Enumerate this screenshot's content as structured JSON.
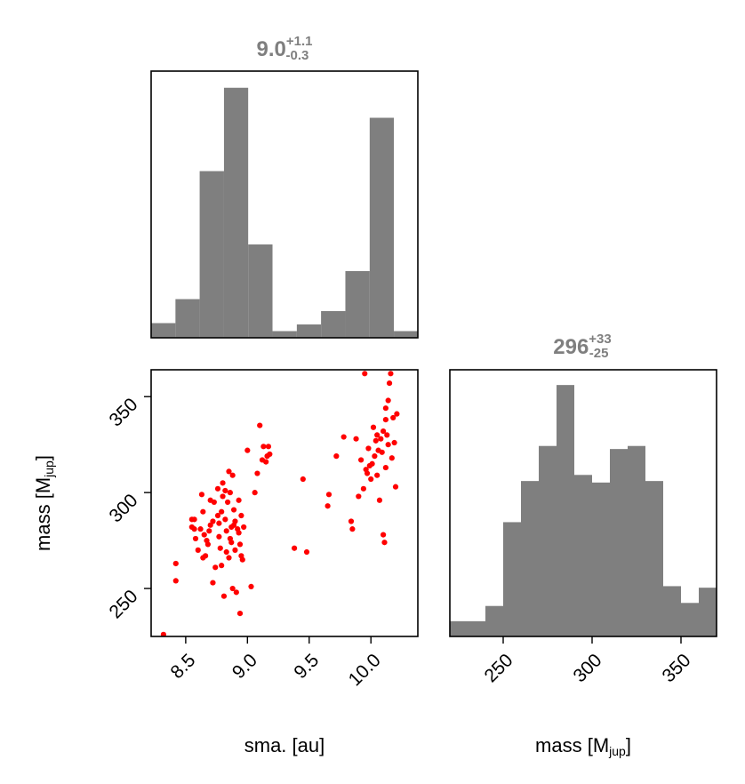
{
  "colors": {
    "hist": "#7f7f7f",
    "scatter": "#ff0000",
    "title": "#7f7f7f"
  },
  "chart_data": [
    {
      "type": "bar",
      "panel": "top-left",
      "title": {
        "value": "9.0",
        "plus": "+1.1",
        "minus": "-0.3"
      },
      "x_range": [
        8.22,
        10.38
      ],
      "bin_edges": [
        8.22,
        8.417,
        8.613,
        8.81,
        9.006,
        9.203,
        9.4,
        9.596,
        9.793,
        9.99,
        10.186,
        10.38
      ],
      "counts": [
        2.2,
        5.8,
        25,
        37.5,
        14,
        1,
        2,
        4,
        10,
        33,
        1
      ],
      "ylim": [
        0,
        40
      ]
    },
    {
      "type": "scatter",
      "panel": "bottom-left",
      "xlabel": "sma. [au]",
      "ylabel": {
        "text": "mass [M",
        "sub": "jup",
        "close": "]"
      },
      "xlim": [
        8.22,
        10.38
      ],
      "ylim": [
        225,
        364
      ],
      "xticks": [
        8.5,
        9.0,
        9.5,
        10.0
      ],
      "xtick_labels": [
        "8.5",
        "9.0",
        "9.5",
        "10.0"
      ],
      "yticks": [
        250,
        300,
        350
      ],
      "ytick_labels": [
        "250",
        "300",
        "350"
      ],
      "points": [
        [
          8.32,
          226
        ],
        [
          8.42,
          263
        ],
        [
          8.42,
          254
        ],
        [
          8.55,
          286
        ],
        [
          8.57,
          286
        ],
        [
          8.55,
          282
        ],
        [
          8.57,
          281
        ],
        [
          8.58,
          276
        ],
        [
          8.6,
          270
        ],
        [
          8.62,
          281
        ],
        [
          8.63,
          299
        ],
        [
          8.64,
          290
        ],
        [
          8.64,
          266
        ],
        [
          8.65,
          278
        ],
        [
          8.66,
          267
        ],
        [
          8.67,
          275
        ],
        [
          8.68,
          273
        ],
        [
          8.69,
          280
        ],
        [
          8.7,
          283
        ],
        [
          8.7,
          296
        ],
        [
          8.72,
          253
        ],
        [
          8.72,
          285
        ],
        [
          8.73,
          295
        ],
        [
          8.74,
          261
        ],
        [
          8.76,
          302
        ],
        [
          8.76,
          288
        ],
        [
          8.77,
          284
        ],
        [
          8.77,
          277
        ],
        [
          8.78,
          271
        ],
        [
          8.79,
          262
        ],
        [
          8.79,
          290
        ],
        [
          8.8,
          298
        ],
        [
          8.8,
          305
        ],
        [
          8.81,
          246
        ],
        [
          8.82,
          301
        ],
        [
          8.82,
          286
        ],
        [
          8.83,
          280
        ],
        [
          8.83,
          269
        ],
        [
          8.84,
          295
        ],
        [
          8.85,
          266
        ],
        [
          8.85,
          311
        ],
        [
          8.86,
          300
        ],
        [
          8.86,
          276
        ],
        [
          8.87,
          282
        ],
        [
          8.87,
          274
        ],
        [
          8.88,
          250
        ],
        [
          8.88,
          309
        ],
        [
          8.89,
          291
        ],
        [
          8.89,
          283
        ],
        [
          8.9,
          285
        ],
        [
          8.9,
          270
        ],
        [
          8.91,
          248
        ],
        [
          8.92,
          281
        ],
        [
          8.93,
          279
        ],
        [
          8.93,
          296
        ],
        [
          8.94,
          273
        ],
        [
          8.94,
          237
        ],
        [
          8.95,
          267
        ],
        [
          8.95,
          288
        ],
        [
          8.96,
          265
        ],
        [
          8.97,
          282
        ],
        [
          9.0,
          322
        ],
        [
          9.03,
          251
        ],
        [
          9.06,
          300
        ],
        [
          9.08,
          310
        ],
        [
          9.1,
          335
        ],
        [
          9.12,
          317
        ],
        [
          9.13,
          324
        ],
        [
          9.15,
          316
        ],
        [
          9.16,
          319
        ],
        [
          9.17,
          324
        ],
        [
          9.18,
          320
        ],
        [
          9.38,
          271
        ],
        [
          9.45,
          307
        ],
        [
          9.48,
          269
        ],
        [
          9.65,
          293
        ],
        [
          9.66,
          299
        ],
        [
          9.72,
          319
        ],
        [
          9.78,
          329
        ],
        [
          9.84,
          285
        ],
        [
          9.85,
          281
        ],
        [
          9.88,
          328
        ],
        [
          9.9,
          298
        ],
        [
          9.92,
          317
        ],
        [
          9.94,
          302
        ],
        [
          9.95,
          362
        ],
        [
          9.96,
          312
        ],
        [
          9.97,
          310
        ],
        [
          9.98,
          323
        ],
        [
          9.99,
          314
        ],
        [
          10.0,
          307
        ],
        [
          10.01,
          315
        ],
        [
          10.02,
          334
        ],
        [
          10.03,
          319
        ],
        [
          10.04,
          327
        ],
        [
          10.05,
          330
        ],
        [
          10.05,
          309
        ],
        [
          10.06,
          322
        ],
        [
          10.07,
          296
        ],
        [
          10.08,
          328
        ],
        [
          10.09,
          321
        ],
        [
          10.1,
          332
        ],
        [
          10.1,
          278
        ],
        [
          10.11,
          274
        ],
        [
          10.12,
          313
        ],
        [
          10.12,
          338
        ],
        [
          10.13,
          330
        ],
        [
          10.14,
          325
        ],
        [
          10.14,
          348
        ],
        [
          10.15,
          357
        ],
        [
          10.16,
          362
        ],
        [
          10.17,
          318
        ],
        [
          10.18,
          339
        ],
        [
          10.19,
          326
        ],
        [
          10.2,
          303
        ],
        [
          10.21,
          341
        ],
        [
          10.12,
          344
        ]
      ]
    },
    {
      "type": "bar",
      "panel": "bottom-right",
      "title": {
        "value": "296",
        "plus": "+33",
        "minus": "-25"
      },
      "xlabel": {
        "text": "mass [M",
        "sub": "jup",
        "close": "]"
      },
      "x_range": [
        220,
        370
      ],
      "bin_edges": [
        220,
        240,
        250,
        260,
        270,
        280,
        290,
        300,
        310,
        320,
        330,
        340,
        350,
        360,
        370
      ],
      "counts": [
        1,
        2,
        7.5,
        10.2,
        12.5,
        16.5,
        10.6,
        10.1,
        12.3,
        12.5,
        10.2,
        3.3,
        2.2,
        3.2
      ],
      "ylim": [
        0,
        17.5
      ],
      "xticks": [
        250,
        300,
        350
      ],
      "xtick_labels": [
        "250",
        "300",
        "350"
      ]
    }
  ]
}
